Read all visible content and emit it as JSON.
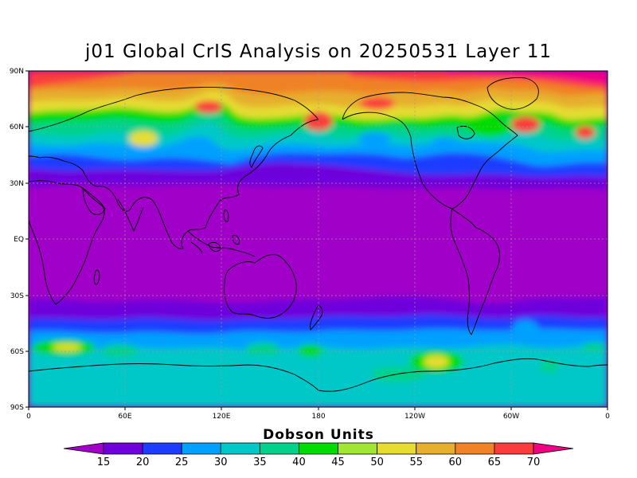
{
  "title": "j01 Global CrIS Analysis on 20250531 Layer 11",
  "map": {
    "lat_labels": [
      "90N",
      "60N",
      "30N",
      "EQ",
      "30S",
      "60S",
      "90S"
    ],
    "lon_labels": [
      "0",
      "60E",
      "120E",
      "180",
      "120W",
      "60W",
      "0"
    ],
    "grid": true,
    "projection": "cylindrical-equidistant"
  },
  "colorbar": {
    "unit": "Dobson Units",
    "levels": [
      "15",
      "20",
      "25",
      "30",
      "35",
      "40",
      "45",
      "50",
      "55",
      "60",
      "65",
      "70"
    ],
    "colors": [
      "#a000c8",
      "#6e00dc",
      "#1e3cff",
      "#00a0ff",
      "#00c8c8",
      "#00d28c",
      "#00dc00",
      "#a0e632",
      "#e6dc32",
      "#e6af2d",
      "#f08228",
      "#fa3c3c",
      "#f00082"
    ]
  }
}
